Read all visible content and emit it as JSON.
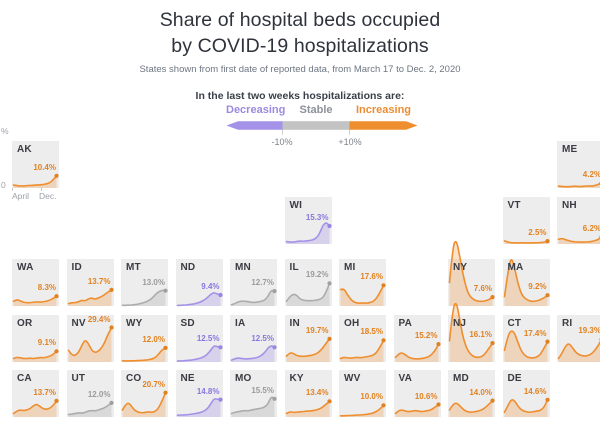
{
  "header": {
    "title_line1": "Share of hospital beds occupied",
    "title_line2": "by COVID-19 hospitalizations",
    "subtitle": "States shown from first date of reported data, from March 17 to Dec. 2, 2020",
    "legend_heading": "In the last two weeks hospitalizations are:"
  },
  "legend": {
    "decreasing_label": "Decreasing",
    "stable_label": "Stable",
    "increasing_label": "Increasing",
    "minus_label": "-10%",
    "plus_label": "+10%",
    "colors": {
      "decreasing": "#a492e8",
      "stable": "#c3c3c3",
      "increasing": "#ee8e2e"
    },
    "label_colors": {
      "decreasing": "#9c8ae0",
      "stable": "#8d9199",
      "increasing": "#ec8d33"
    },
    "tick_color": "#d2d2d2"
  },
  "axis": {
    "x_left": "April",
    "x_right": "Dec.",
    "y_top": "%",
    "y_bottom": "0"
  },
  "trend_styles": {
    "increasing": {
      "line": "#ee8e2e",
      "fill": "rgba(238,142,46,0.26)",
      "text": "#e2811f",
      "dot": "#e2811f"
    },
    "decreasing": {
      "line": "#a492e8",
      "fill": "rgba(164,146,232,0.30)",
      "text": "#8a76de",
      "dot": "#9886e4"
    },
    "stable": {
      "line": "#acacac",
      "fill": "rgba(172,172,172,0.30)",
      "text": "#9b9b9b",
      "dot": "#a0a0a0"
    }
  },
  "chart_data": {
    "type": "area",
    "title": "Share of hospital beds occupied by COVID-19 hospitalizations",
    "x_range": [
      "March 17, 2020",
      "Dec. 2, 2020"
    ],
    "y_axis": {
      "min": 0,
      "max": 40,
      "unit": "%"
    },
    "grid": "off",
    "legend_position": "top",
    "series_unit": "percent of hospital beds occupied by COVID-19 hospitalizations",
    "states": [
      {
        "abbr": "AK",
        "value": "10.4%",
        "latest": 10.4,
        "trend": "increasing",
        "row": 0,
        "col": 0,
        "points": [
          2.5,
          2,
          1.8,
          1.8,
          2,
          2.2,
          2.2,
          2.6,
          2.6,
          3,
          3.6,
          4.5,
          7,
          10.4
        ]
      },
      {
        "abbr": "ME",
        "value": "4.2%",
        "latest": 4.2,
        "trend": "increasing",
        "row": 0,
        "col": 10,
        "points": [
          1.6,
          1.3,
          1.1,
          1.1,
          1.3,
          1.6,
          1.4,
          1.3,
          1.6,
          1.9,
          1.6,
          2.2,
          3,
          4.2
        ]
      },
      {
        "abbr": "WI",
        "value": "15.3%",
        "latest": 15.3,
        "trend": "decreasing",
        "row": 1,
        "col": 5,
        "points": [
          2,
          1.6,
          1.6,
          2,
          2.6,
          2.2,
          2.6,
          3,
          3.6,
          5,
          9,
          16,
          18.5,
          15.3
        ]
      },
      {
        "abbr": "VT",
        "value": "2.5%",
        "latest": 2.5,
        "trend": "increasing",
        "row": 1,
        "col": 9,
        "points": [
          2.6,
          1.6,
          1,
          0.9,
          0.9,
          1,
          0.9,
          0.9,
          1,
          1.1,
          1.2,
          1.6,
          2.5
        ]
      },
      {
        "abbr": "NH",
        "value": "6.2%",
        "latest": 6.2,
        "trend": "increasing",
        "row": 1,
        "col": 10,
        "points": [
          4,
          5,
          3.6,
          2.6,
          2,
          1.8,
          1.6,
          1.6,
          1.8,
          2,
          2.6,
          3.6,
          6.2
        ]
      },
      {
        "abbr": "WA",
        "value": "8.3%",
        "latest": 8.3,
        "trend": "increasing",
        "row": 2,
        "col": 0,
        "points": [
          4,
          5.5,
          4.5,
          3.2,
          2.8,
          2.8,
          3.2,
          3.6,
          3.2,
          3.6,
          4.2,
          5,
          6.5,
          8.3
        ]
      },
      {
        "abbr": "ID",
        "value": "13.7%",
        "latest": 13.7,
        "trend": "increasing",
        "row": 2,
        "col": 1,
        "points": [
          2,
          3,
          2.6,
          3.6,
          5,
          4.2,
          6,
          7,
          5.6,
          7,
          8,
          10,
          12,
          13.7
        ]
      },
      {
        "abbr": "MT",
        "value": "13.0%",
        "latest": 13.0,
        "trend": "stable",
        "row": 2,
        "col": 2,
        "points": [
          0.6,
          0.6,
          0.8,
          1,
          1.4,
          2,
          3,
          4,
          6,
          9,
          12,
          13.4,
          13
        ]
      },
      {
        "abbr": "ND",
        "value": "9.4%",
        "latest": 9.4,
        "trend": "decreasing",
        "row": 2,
        "col": 3,
        "points": [
          0.5,
          0.6,
          0.8,
          1,
          1.3,
          1.8,
          2.5,
          3.5,
          5,
          7,
          10,
          11.5,
          10.3,
          9.4
        ]
      },
      {
        "abbr": "MN",
        "value": "12.7%",
        "latest": 12.7,
        "trend": "stable",
        "row": 2,
        "col": 4,
        "points": [
          1,
          2,
          3.5,
          4.2,
          4,
          3.8,
          3.2,
          3,
          3.5,
          4,
          5,
          8,
          13.5,
          12.7
        ]
      },
      {
        "abbr": "IL",
        "value": "19.2%",
        "latest": 19.2,
        "trend": "stable",
        "row": 2,
        "col": 5,
        "points": [
          4,
          8,
          10,
          9.5,
          6,
          5,
          4.5,
          4.5,
          4.5,
          5,
          5.5,
          7,
          12,
          19.2
        ]
      },
      {
        "abbr": "MI",
        "value": "17.6%",
        "latest": 17.6,
        "trend": "increasing",
        "row": 2,
        "col": 6,
        "points": [
          14,
          15,
          10,
          6,
          3.5,
          2.5,
          2.5,
          2.5,
          2.5,
          3,
          4,
          7,
          12,
          17.6
        ]
      },
      {
        "abbr": "NY",
        "value": "7.6%",
        "latest": 7.6,
        "trend": "increasing",
        "row": 2,
        "col": 8,
        "points": [
          20,
          50,
          57,
          44,
          28,
          16,
          9,
          6,
          4.5,
          4,
          4,
          4.5,
          5.5,
          7.6
        ]
      },
      {
        "abbr": "MA",
        "value": "9.2%",
        "latest": 9.2,
        "trend": "increasing",
        "row": 2,
        "col": 9,
        "points": [
          8,
          28,
          42,
          33,
          20,
          11,
          7,
          5,
          4,
          4,
          4.5,
          5.5,
          7,
          9.2
        ]
      },
      {
        "abbr": "OR",
        "value": "9.1%",
        "latest": 9.1,
        "trend": "increasing",
        "row": 3,
        "col": 0,
        "points": [
          3,
          4.2,
          3.6,
          3,
          3,
          3.4,
          3,
          3.4,
          3.8,
          3.6,
          4.2,
          5,
          6.5,
          9.1
        ]
      },
      {
        "abbr": "NV",
        "value": "29.4%",
        "latest": 29.4,
        "trend": "increasing",
        "row": 3,
        "col": 1,
        "points": [
          10,
          6,
          5.5,
          8,
          14,
          19,
          16,
          10,
          8,
          9,
          12,
          17,
          24,
          29.4
        ]
      },
      {
        "abbr": "WY",
        "value": "12.0%",
        "latest": 12.0,
        "trend": "increasing",
        "row": 3,
        "col": 2,
        "points": [
          1,
          0.9,
          0.9,
          1,
          1.1,
          1.3,
          1.5,
          1.6,
          2,
          2.6,
          4,
          7,
          10.5,
          12
        ]
      },
      {
        "abbr": "SD",
        "value": "12.5%",
        "latest": 12.5,
        "trend": "decreasing",
        "row": 3,
        "col": 3,
        "points": [
          0.8,
          1,
          1.1,
          1.3,
          1.6,
          2,
          2.6,
          3.4,
          4.5,
          6.5,
          10,
          14,
          13.2,
          12.5
        ]
      },
      {
        "abbr": "IA",
        "value": "12.5%",
        "latest": 12.5,
        "trend": "decreasing",
        "row": 3,
        "col": 4,
        "points": [
          1.5,
          2.8,
          3.5,
          3,
          2.6,
          2.6,
          3,
          3.4,
          4,
          5.5,
          8,
          12,
          14,
          12.5
        ]
      },
      {
        "abbr": "IN",
        "value": "19.7%",
        "latest": 19.7,
        "trend": "increasing",
        "row": 3,
        "col": 5,
        "points": [
          5,
          8,
          7.5,
          5.5,
          5,
          4.8,
          5,
          5.5,
          6,
          7,
          9,
          12,
          16,
          19.7
        ]
      },
      {
        "abbr": "OH",
        "value": "18.5%",
        "latest": 18.5,
        "trend": "increasing",
        "row": 3,
        "col": 6,
        "points": [
          3,
          4.2,
          3.6,
          3.2,
          3.6,
          4,
          3.6,
          4,
          4.5,
          5,
          6,
          8.5,
          13,
          18.5
        ]
      },
      {
        "abbr": "PA",
        "value": "15.2%",
        "latest": 15.2,
        "trend": "increasing",
        "row": 3,
        "col": 7,
        "points": [
          4,
          7,
          8,
          6,
          4,
          3,
          2.6,
          2.6,
          3,
          3.5,
          4.5,
          6.5,
          10,
          15.2
        ]
      },
      {
        "abbr": "NJ",
        "value": "16.1%",
        "latest": 16.1,
        "trend": "increasing",
        "row": 3,
        "col": 8,
        "points": [
          18,
          45,
          52,
          38,
          22,
          13,
          8,
          5,
          4,
          4,
          5,
          8,
          12,
          16.1
        ]
      },
      {
        "abbr": "CT",
        "value": "17.4%",
        "latest": 17.4,
        "trend": "increasing",
        "row": 3,
        "col": 9,
        "points": [
          10,
          22,
          27,
          25,
          17,
          10,
          6,
          4,
          3.5,
          3.5,
          4.5,
          7,
          12,
          17.4
        ]
      },
      {
        "abbr": "RI",
        "value": "19.3%",
        "latest": 19.3,
        "trend": "increasing",
        "row": 3,
        "col": 10,
        "points": [
          3,
          7,
          13,
          16,
          13,
          9,
          6.5,
          5.5,
          5,
          5.5,
          7,
          10,
          14,
          19.3
        ]
      },
      {
        "abbr": "CA",
        "value": "13.7%",
        "latest": 13.7,
        "trend": "increasing",
        "row": 4,
        "col": 0,
        "points": [
          3,
          5,
          6,
          5.5,
          6,
          7,
          9.5,
          11,
          9,
          7,
          6.5,
          7.5,
          10,
          13.7
        ]
      },
      {
        "abbr": "UT",
        "value": "12.0%",
        "latest": 12.0,
        "trend": "stable",
        "row": 4,
        "col": 1,
        "points": [
          2,
          2.5,
          3,
          3.5,
          3.2,
          4,
          5,
          5.5,
          5.2,
          6,
          7,
          8,
          10,
          12
        ]
      },
      {
        "abbr": "CO",
        "value": "20.7%",
        "latest": 20.7,
        "trend": "increasing",
        "row": 4,
        "col": 2,
        "points": [
          6,
          11,
          12,
          8,
          5,
          4,
          3.5,
          4,
          4.3,
          4,
          5,
          8,
          14,
          20.7
        ]
      },
      {
        "abbr": "NE",
        "value": "14.8%",
        "latest": 14.8,
        "trend": "decreasing",
        "row": 4,
        "col": 3,
        "points": [
          1.5,
          1.6,
          1.8,
          2,
          2.3,
          2.8,
          3.2,
          4,
          5,
          7,
          11,
          15.5,
          15.2,
          14.8
        ]
      },
      {
        "abbr": "MO",
        "value": "15.5%",
        "latest": 15.5,
        "trend": "stable",
        "row": 4,
        "col": 4,
        "points": [
          3,
          4,
          4.5,
          5,
          5.5,
          5.2,
          6,
          6.5,
          7,
          7.5,
          8.5,
          11,
          17.5,
          15.5
        ]
      },
      {
        "abbr": "KY",
        "value": "13.4%",
        "latest": 13.4,
        "trend": "increasing",
        "row": 4,
        "col": 5,
        "points": [
          3,
          4.5,
          4,
          4,
          4.5,
          4.5,
          5,
          5,
          5.5,
          6,
          7,
          8.5,
          11,
          13.4
        ]
      },
      {
        "abbr": "WV",
        "value": "10.0%",
        "latest": 10.0,
        "trend": "increasing",
        "row": 4,
        "col": 6,
        "points": [
          1,
          1,
          1.2,
          1.3,
          1.5,
          1.6,
          1.8,
          2,
          2.2,
          2.8,
          3.5,
          5,
          7,
          10
        ]
      },
      {
        "abbr": "VA",
        "value": "10.6%",
        "latest": 10.6,
        "trend": "increasing",
        "row": 4,
        "col": 7,
        "points": [
          3,
          5.5,
          6,
          5,
          4.5,
          5,
          5.5,
          5,
          4.5,
          5,
          5.5,
          6.5,
          8.5,
          10.6
        ]
      },
      {
        "abbr": "MD",
        "value": "14.0%",
        "latest": 14.0,
        "trend": "increasing",
        "row": 4,
        "col": 8,
        "points": [
          6,
          11,
          12,
          9,
          6,
          4.5,
          4,
          4.5,
          5,
          6,
          8,
          11,
          14
        ]
      },
      {
        "abbr": "DE",
        "value": "14.6%",
        "latest": 14.6,
        "trend": "increasing",
        "row": 4,
        "col": 9,
        "points": [
          4,
          10,
          15.5,
          13,
          8,
          5.5,
          4.5,
          4,
          4.5,
          5,
          5.5,
          8,
          14.6
        ]
      }
    ]
  }
}
